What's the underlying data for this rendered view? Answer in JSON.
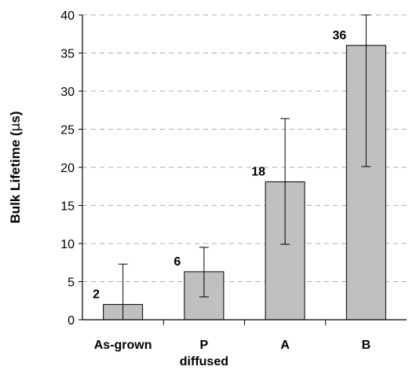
{
  "chart_data": {
    "type": "bar",
    "categories": [
      "As-grown",
      "P",
      "A",
      "B"
    ],
    "category_sublabels": [
      "",
      "diffused",
      "",
      ""
    ],
    "values": [
      2,
      6.3,
      18.1,
      36
    ],
    "data_labels": [
      "2",
      "6",
      "18",
      "36"
    ],
    "error_low": [
      0,
      3,
      9.9,
      20.1
    ],
    "error_high": [
      7.3,
      9.5,
      26.4,
      40
    ],
    "ylabel_text": "Bulk Lifetime (",
    "ylabel_symbol": "µ",
    "ylabel_unit": "s)",
    "ylim": [
      0,
      40
    ],
    "yticks": [
      0,
      5,
      10,
      15,
      20,
      25,
      30,
      35,
      40
    ],
    "ytick_labels": [
      "0",
      "5",
      "10",
      "15",
      "20",
      "25",
      "30",
      "35",
      "40"
    ],
    "grid": true,
    "grid_style": "dashed",
    "legend": false,
    "colors": {
      "bar_fill": "#c0c0c0",
      "bar_stroke": "#000000",
      "grid": "#b0b0b0"
    }
  }
}
